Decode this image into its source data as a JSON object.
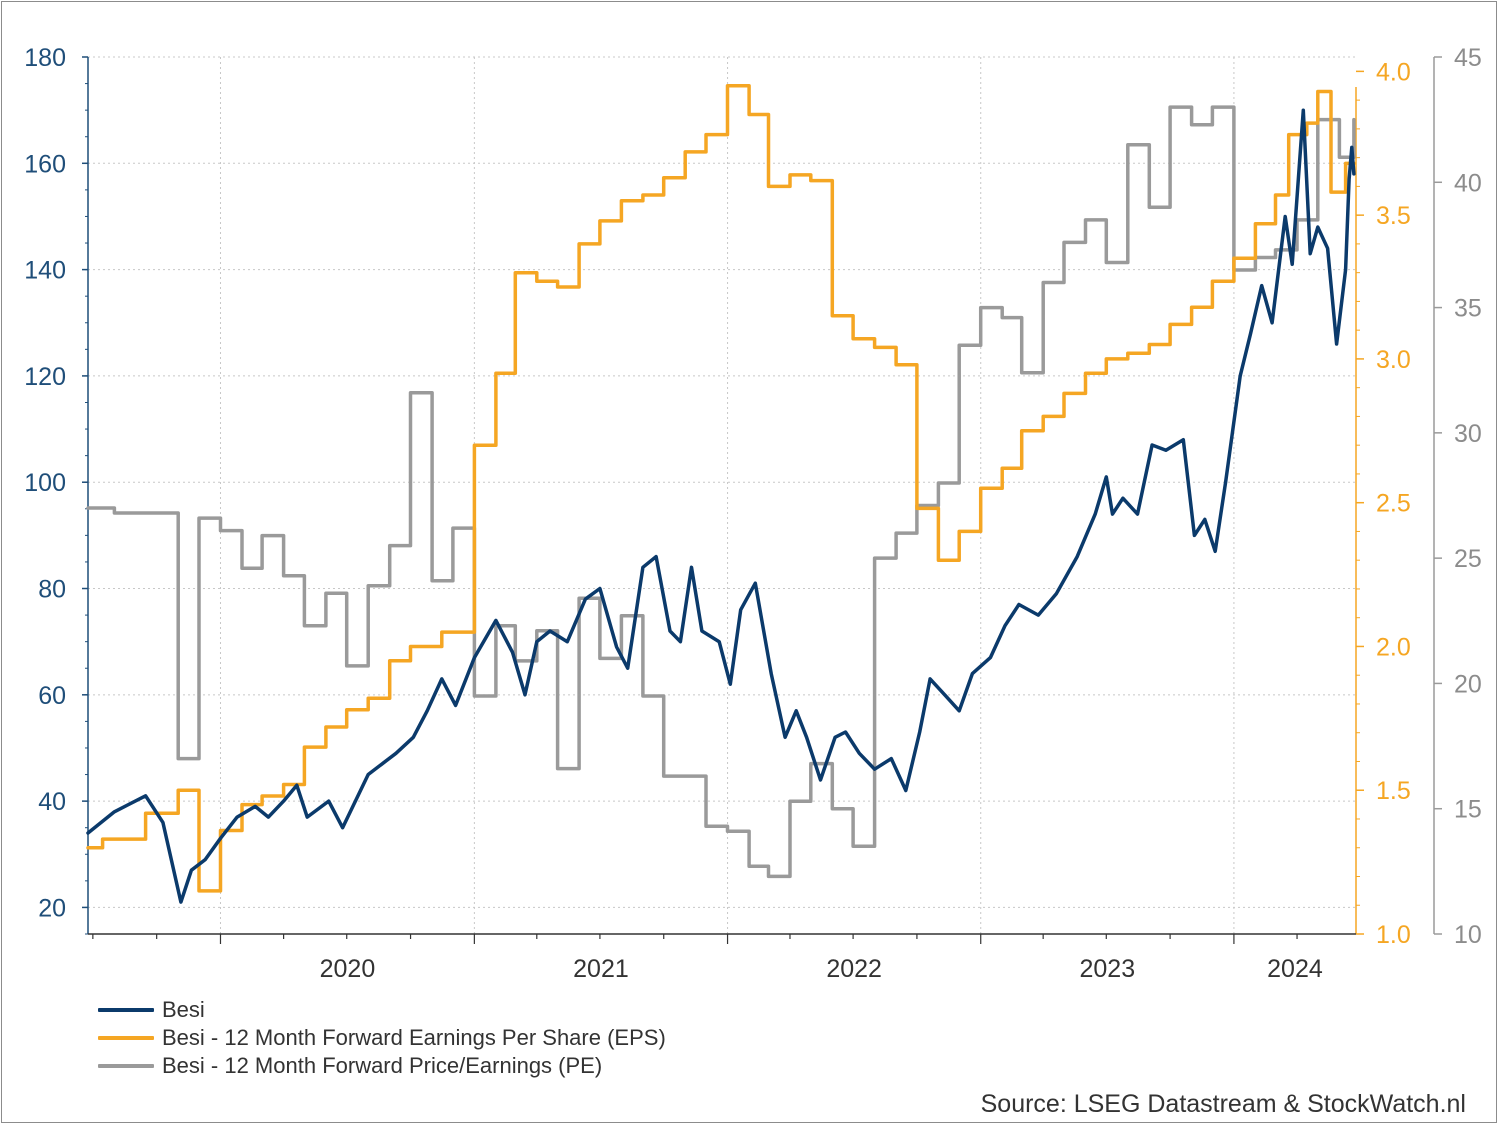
{
  "chart_data": {
    "type": "line",
    "x_type": "date",
    "x_range": [
      "2019-06-24",
      "2024-06-25"
    ],
    "x_tick_labels": [
      {
        "date": "2020-01-01",
        "label": "2020"
      },
      {
        "date": "2021-01-01",
        "label": "2021"
      },
      {
        "date": "2022-01-01",
        "label": "2022"
      },
      {
        "date": "2023-01-01",
        "label": "2023"
      },
      {
        "date": "2024-01-01",
        "label": "2024"
      }
    ],
    "axes": {
      "left": {
        "ylim": [
          15,
          180
        ],
        "ticks": [
          20,
          40,
          60,
          80,
          100,
          120,
          140,
          160,
          180
        ],
        "tick_labels": [
          "20",
          "40",
          "60",
          "80",
          "100",
          "120",
          "140",
          "160",
          "180"
        ],
        "color": "#1f4e79"
      },
      "right1": {
        "ylim": [
          1.0,
          4.05
        ],
        "ticks": [
          1.0,
          1.5,
          2.0,
          2.5,
          3.0,
          3.5,
          4.0
        ],
        "tick_labels": [
          "1.0",
          "1.5",
          "2.0",
          "2.5",
          "3.0",
          "3.5",
          "4.0"
        ],
        "color": "#f5a623"
      },
      "right2": {
        "ylim": [
          10,
          45
        ],
        "ticks": [
          10,
          15,
          20,
          25,
          30,
          35,
          40,
          45
        ],
        "tick_labels": [
          "10",
          "15",
          "20",
          "25",
          "30",
          "35",
          "40",
          "45"
        ],
        "color": "#8c8c8c"
      }
    },
    "grid": true,
    "legend_position": "bottom-left",
    "series": [
      {
        "name": "Besi",
        "axis": "left",
        "color": "#0b3a6b",
        "points": [
          [
            "2019-06-24",
            34
          ],
          [
            "2019-08-01",
            38
          ],
          [
            "2019-09-15",
            41
          ],
          [
            "2019-10-10",
            36
          ],
          [
            "2019-11-05",
            21
          ],
          [
            "2019-11-20",
            27
          ],
          [
            "2019-12-10",
            29
          ],
          [
            "2020-01-01",
            33
          ],
          [
            "2020-01-25",
            37
          ],
          [
            "2020-02-20",
            39
          ],
          [
            "2020-03-10",
            37
          ],
          [
            "2020-04-01",
            40
          ],
          [
            "2020-04-20",
            43
          ],
          [
            "2020-05-05",
            37
          ],
          [
            "2020-06-05",
            40
          ],
          [
            "2020-06-25",
            35
          ],
          [
            "2020-08-01",
            45
          ],
          [
            "2020-09-10",
            49
          ],
          [
            "2020-10-05",
            52
          ],
          [
            "2020-10-25",
            57
          ],
          [
            "2020-11-15",
            63
          ],
          [
            "2020-12-05",
            58
          ],
          [
            "2021-01-01",
            67
          ],
          [
            "2021-02-01",
            74
          ],
          [
            "2021-02-25",
            68
          ],
          [
            "2021-03-15",
            60
          ],
          [
            "2021-04-01",
            70
          ],
          [
            "2021-04-20",
            72
          ],
          [
            "2021-05-15",
            70
          ],
          [
            "2021-06-10",
            78
          ],
          [
            "2021-07-01",
            80
          ],
          [
            "2021-07-25",
            69
          ],
          [
            "2021-08-10",
            65
          ],
          [
            "2021-09-01",
            84
          ],
          [
            "2021-09-20",
            86
          ],
          [
            "2021-10-10",
            72
          ],
          [
            "2021-10-25",
            70
          ],
          [
            "2021-11-10",
            84
          ],
          [
            "2021-11-25",
            72
          ],
          [
            "2021-12-20",
            70
          ],
          [
            "2022-01-05",
            62
          ],
          [
            "2022-01-20",
            76
          ],
          [
            "2022-02-10",
            81
          ],
          [
            "2022-03-05",
            64
          ],
          [
            "2022-03-25",
            52
          ],
          [
            "2022-04-10",
            57
          ],
          [
            "2022-04-25",
            52
          ],
          [
            "2022-05-15",
            44
          ],
          [
            "2022-06-05",
            52
          ],
          [
            "2022-06-20",
            53
          ],
          [
            "2022-07-10",
            49
          ],
          [
            "2022-08-01",
            46
          ],
          [
            "2022-08-25",
            48
          ],
          [
            "2022-09-15",
            42
          ],
          [
            "2022-10-05",
            53
          ],
          [
            "2022-10-20",
            63
          ],
          [
            "2022-11-10",
            60
          ],
          [
            "2022-12-01",
            57
          ],
          [
            "2022-12-20",
            64
          ],
          [
            "2023-01-15",
            67
          ],
          [
            "2023-02-05",
            73
          ],
          [
            "2023-02-25",
            77
          ],
          [
            "2023-03-25",
            75
          ],
          [
            "2023-04-20",
            79
          ],
          [
            "2023-05-20",
            86
          ],
          [
            "2023-06-15",
            94
          ],
          [
            "2023-07-01",
            101
          ],
          [
            "2023-07-10",
            94
          ],
          [
            "2023-07-25",
            97
          ],
          [
            "2023-08-15",
            94
          ],
          [
            "2023-09-05",
            107
          ],
          [
            "2023-09-25",
            106
          ],
          [
            "2023-10-20",
            108
          ],
          [
            "2023-11-05",
            90
          ],
          [
            "2023-11-20",
            93
          ],
          [
            "2023-12-05",
            87
          ],
          [
            "2023-12-20",
            100
          ],
          [
            "2024-01-10",
            120
          ],
          [
            "2024-01-25",
            128
          ],
          [
            "2024-02-10",
            137
          ],
          [
            "2024-02-25",
            130
          ],
          [
            "2024-03-15",
            150
          ],
          [
            "2024-03-25",
            141
          ],
          [
            "2024-04-10",
            170
          ],
          [
            "2024-04-20",
            143
          ],
          [
            "2024-05-01",
            148
          ],
          [
            "2024-05-15",
            144
          ],
          [
            "2024-05-28",
            126
          ],
          [
            "2024-06-10",
            140
          ],
          [
            "2024-06-15",
            157
          ],
          [
            "2024-06-19",
            163
          ],
          [
            "2024-06-22",
            158
          ]
        ]
      },
      {
        "name": "Besi - 12 Month Forward Earnings Per Share (EPS)",
        "axis": "right1",
        "color": "#f5a623",
        "step": true,
        "points": [
          [
            "2019-06-24",
            1.3
          ],
          [
            "2019-07-15",
            1.33
          ],
          [
            "2019-09-15",
            1.42
          ],
          [
            "2019-11-01",
            1.5
          ],
          [
            "2019-12-01",
            1.15
          ],
          [
            "2020-01-01",
            1.36
          ],
          [
            "2020-02-01",
            1.45
          ],
          [
            "2020-03-01",
            1.48
          ],
          [
            "2020-04-01",
            1.52
          ],
          [
            "2020-05-01",
            1.65
          ],
          [
            "2020-06-01",
            1.72
          ],
          [
            "2020-07-01",
            1.78
          ],
          [
            "2020-08-01",
            1.82
          ],
          [
            "2020-09-01",
            1.95
          ],
          [
            "2020-10-01",
            2.0
          ],
          [
            "2020-11-15",
            2.05
          ],
          [
            "2021-01-01",
            2.7
          ],
          [
            "2021-02-01",
            2.95
          ],
          [
            "2021-03-01",
            3.3
          ],
          [
            "2021-04-01",
            3.27
          ],
          [
            "2021-05-01",
            3.25
          ],
          [
            "2021-06-01",
            3.4
          ],
          [
            "2021-07-01",
            3.48
          ],
          [
            "2021-08-01",
            3.55
          ],
          [
            "2021-09-01",
            3.57
          ],
          [
            "2021-10-01",
            3.63
          ],
          [
            "2021-11-01",
            3.72
          ],
          [
            "2021-12-01",
            3.78
          ],
          [
            "2022-01-01",
            3.95
          ],
          [
            "2022-02-01",
            3.85
          ],
          [
            "2022-03-01",
            3.6
          ],
          [
            "2022-04-01",
            3.64
          ],
          [
            "2022-05-01",
            3.62
          ],
          [
            "2022-06-01",
            3.15
          ],
          [
            "2022-07-01",
            3.07
          ],
          [
            "2022-08-01",
            3.04
          ],
          [
            "2022-09-01",
            2.98
          ],
          [
            "2022-10-01",
            2.48
          ],
          [
            "2022-11-01",
            2.3
          ],
          [
            "2022-12-01",
            2.4
          ],
          [
            "2023-01-01",
            2.55
          ],
          [
            "2023-02-01",
            2.62
          ],
          [
            "2023-03-01",
            2.75
          ],
          [
            "2023-04-01",
            2.8
          ],
          [
            "2023-05-01",
            2.88
          ],
          [
            "2023-06-01",
            2.95
          ],
          [
            "2023-07-01",
            3.0
          ],
          [
            "2023-08-01",
            3.02
          ],
          [
            "2023-09-01",
            3.05
          ],
          [
            "2023-10-01",
            3.12
          ],
          [
            "2023-11-01",
            3.18
          ],
          [
            "2023-12-01",
            3.27
          ],
          [
            "2024-01-01",
            3.35
          ],
          [
            "2024-02-01",
            3.47
          ],
          [
            "2024-03-01",
            3.57
          ],
          [
            "2024-03-20",
            3.78
          ],
          [
            "2024-04-15",
            3.82
          ],
          [
            "2024-05-01",
            3.93
          ],
          [
            "2024-05-20",
            3.58
          ],
          [
            "2024-06-10",
            3.68
          ],
          [
            "2024-06-22",
            3.68
          ]
        ]
      },
      {
        "name": "Besi - 12 Month Forward Price/Earnings (PE)",
        "axis": "right2",
        "color": "#9a9a9a",
        "step": true,
        "points": [
          [
            "2019-06-24",
            27
          ],
          [
            "2019-08-01",
            26.8
          ],
          [
            "2019-11-01",
            17
          ],
          [
            "2019-12-01",
            26.6
          ],
          [
            "2020-01-01",
            26.1
          ],
          [
            "2020-02-01",
            24.6
          ],
          [
            "2020-03-01",
            25.9
          ],
          [
            "2020-04-01",
            24.3
          ],
          [
            "2020-05-01",
            22.3
          ],
          [
            "2020-06-01",
            23.6
          ],
          [
            "2020-07-01",
            20.7
          ],
          [
            "2020-08-01",
            23.9
          ],
          [
            "2020-09-01",
            25.5
          ],
          [
            "2020-10-01",
            31.6
          ],
          [
            "2020-11-01",
            24.1
          ],
          [
            "2020-12-01",
            26.2
          ],
          [
            "2021-01-01",
            19.5
          ],
          [
            "2021-02-01",
            22.3
          ],
          [
            "2021-03-01",
            20.9
          ],
          [
            "2021-04-01",
            22.1
          ],
          [
            "2021-05-01",
            16.6
          ],
          [
            "2021-06-01",
            23.4
          ],
          [
            "2021-07-01",
            21.0
          ],
          [
            "2021-08-01",
            22.7
          ],
          [
            "2021-09-01",
            19.5
          ],
          [
            "2021-10-01",
            16.3
          ],
          [
            "2021-11-01",
            16.3
          ],
          [
            "2021-12-01",
            14.3
          ],
          [
            "2022-01-01",
            14.1
          ],
          [
            "2022-02-01",
            12.7
          ],
          [
            "2022-03-01",
            12.3
          ],
          [
            "2022-04-01",
            15.3
          ],
          [
            "2022-05-01",
            16.8
          ],
          [
            "2022-06-01",
            15.0
          ],
          [
            "2022-07-01",
            13.5
          ],
          [
            "2022-08-01",
            25.0
          ],
          [
            "2022-09-01",
            26.0
          ],
          [
            "2022-10-01",
            27.1
          ],
          [
            "2022-11-01",
            28.0
          ],
          [
            "2022-12-01",
            33.5
          ],
          [
            "2023-01-01",
            35.0
          ],
          [
            "2023-02-01",
            34.6
          ],
          [
            "2023-03-01",
            32.4
          ],
          [
            "2023-04-01",
            36.0
          ],
          [
            "2023-05-01",
            37.6
          ],
          [
            "2023-06-01",
            38.5
          ],
          [
            "2023-07-01",
            36.8
          ],
          [
            "2023-08-01",
            41.5
          ],
          [
            "2023-09-01",
            39.0
          ],
          [
            "2023-10-01",
            43.0
          ],
          [
            "2023-11-01",
            42.3
          ],
          [
            "2023-12-01",
            43.0
          ],
          [
            "2024-01-01",
            36.5
          ],
          [
            "2024-02-01",
            37.0
          ],
          [
            "2024-03-01",
            37.3
          ],
          [
            "2024-04-01",
            38.5
          ],
          [
            "2024-05-01",
            42.5
          ],
          [
            "2024-06-01",
            41.0
          ],
          [
            "2024-06-22",
            42.5
          ]
        ]
      }
    ],
    "legend": [
      "Besi",
      "Besi - 12 Month Forward Earnings Per Share (EPS)",
      "Besi - 12 Month Forward Price/Earnings (PE)"
    ]
  },
  "source": "Source: LSEG Datastream & StockWatch.nl",
  "legend_labels": {
    "besi": "Besi",
    "eps": "Besi - 12 Month Forward Earnings Per Share (EPS)",
    "pe": "Besi - 12 Month Forward Price/Earnings (PE)"
  }
}
